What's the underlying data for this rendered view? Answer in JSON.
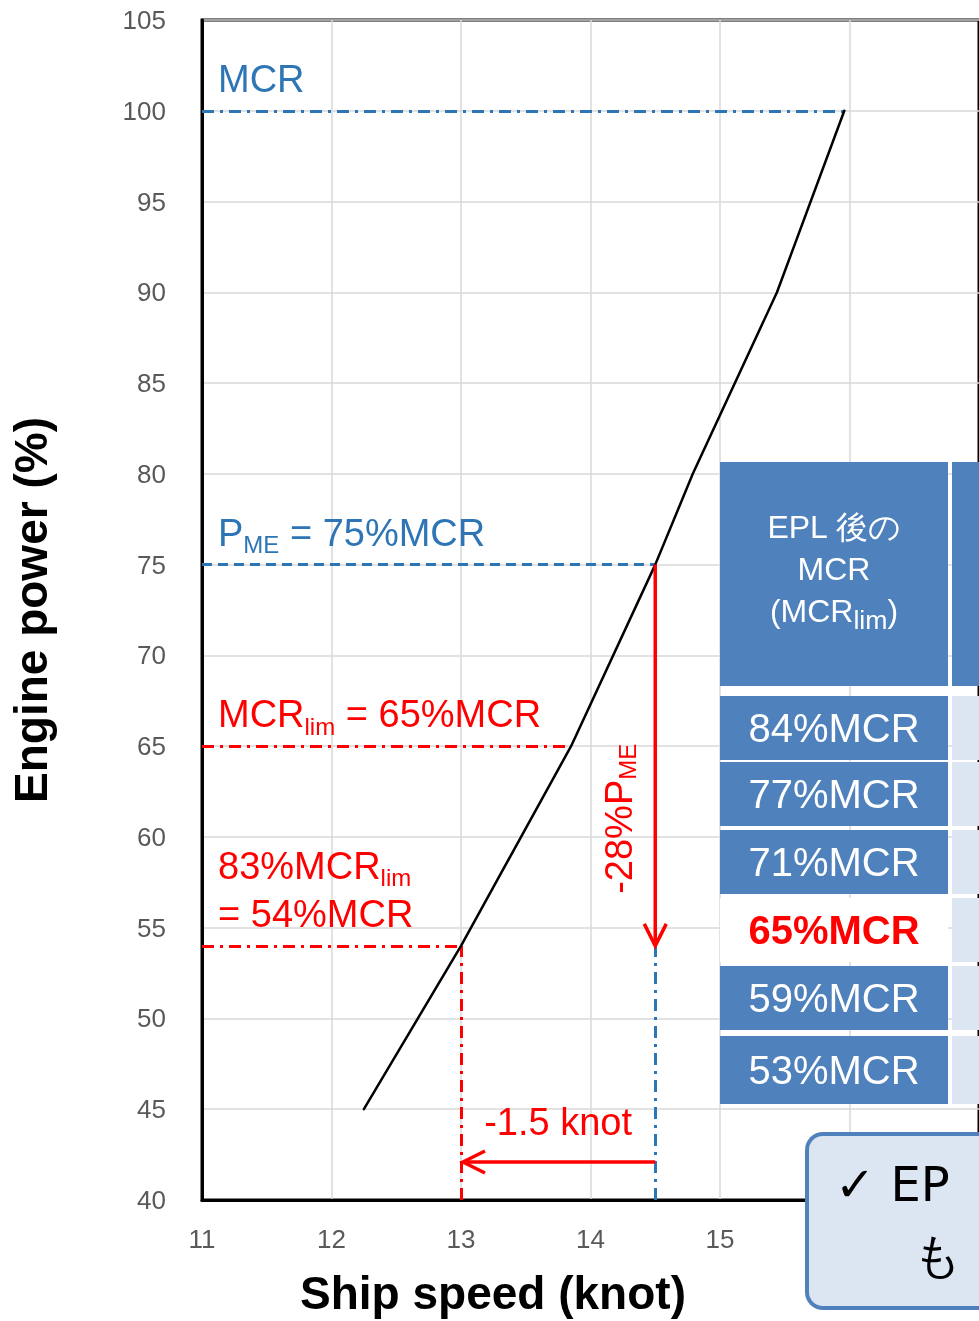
{
  "chart_data": {
    "type": "line",
    "xlabel": "Ship speed (knot)",
    "ylabel": "Engine power (%)",
    "x": [
      12.25,
      13.0,
      13.85,
      14.5,
      14.79,
      15.44,
      15.96
    ],
    "series": [
      {
        "color": "#000000",
        "values": [
          45,
          54,
          65,
          75,
          80,
          90,
          100
        ]
      }
    ],
    "xlim": [
      11,
      17
    ],
    "xticks": [
      11,
      12,
      13,
      14,
      15,
      {
        "value": 16,
        "label": null
      }
    ],
    "ylim": [
      40,
      105
    ],
    "yticks": [
      40,
      45,
      50,
      55,
      60,
      65,
      70,
      75,
      80,
      85,
      90,
      95,
      100,
      105
    ],
    "grid": true,
    "marker": "none",
    "line_style": "solid",
    "ref_lines": [
      {
        "axis": "y",
        "value": 100,
        "label": "MCR",
        "color": "#2e75b6",
        "line_style": "dashdot"
      },
      {
        "axis": "y",
        "value": 75,
        "label": "P$_{ME}$ = 75%MCR",
        "color": "#2e75b6",
        "line_style": "dashed"
      },
      {
        "axis": "y",
        "value": 65,
        "label": "MCR$_{lim}$ = 65%MCR",
        "color": "#ff0000",
        "line_style": "dashdot"
      },
      {
        "axis": "y",
        "value": 54,
        "label": "83%MCR$_{lim}$\n= 54%MCR",
        "color": "#ff0000",
        "line_style": "dashdot"
      },
      {
        "axis": "x",
        "value": 13,
        "label": null,
        "color": "#ff0000",
        "line_style": "dashdot"
      },
      {
        "axis": "x",
        "value": 14.5,
        "label": null,
        "color": "#2e75b6",
        "line_style": "dashdot"
      }
    ],
    "annotations": [
      {
        "text": "-28%P$_{ME}$",
        "x": 14.5,
        "y": 61
      },
      "-1.5 knot",
      "EPL 後の MCR (MCR$_{lim}$)",
      "84%MCR",
      "77%MCR",
      "71%MCR",
      "65%MCR",
      "59%MCR",
      "53%MCR",
      "✓ EP",
      "も"
    ]
  }
}
